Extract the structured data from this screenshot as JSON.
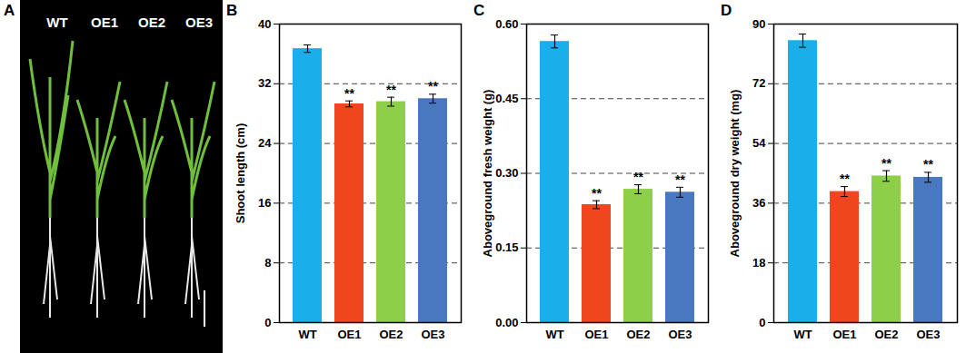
{
  "photo": {
    "panel": "A",
    "labels": [
      "WT",
      "OE1",
      "OE2",
      "OE3"
    ]
  },
  "chart_data": [
    {
      "type": "bar",
      "title": "B",
      "y_label": "Shoot length (cm)",
      "categories": [
        "WT",
        "OE1",
        "OE2",
        "OE3"
      ],
      "values": [
        36.7,
        29.3,
        29.6,
        30.0
      ],
      "errors": [
        0.5,
        0.4,
        0.6,
        0.6
      ],
      "annotations": [
        null,
        "**",
        "**",
        "**"
      ],
      "colors": [
        "#1aaeea",
        "#f0461e",
        "#8ecf4a",
        "#4a78c0"
      ],
      "ylim": [
        0,
        40
      ],
      "yticks": [
        0,
        8,
        16,
        24,
        32,
        40
      ],
      "grid": true
    },
    {
      "type": "bar",
      "title": "C",
      "y_label": "Aboveground fresh weight (g)",
      "categories": [
        "WT",
        "OE1",
        "OE2",
        "OE3"
      ],
      "values": [
        0.565,
        0.237,
        0.268,
        0.262
      ],
      "errors": [
        0.013,
        0.008,
        0.009,
        0.01
      ],
      "annotations": [
        null,
        "**",
        "**",
        "**"
      ],
      "colors": [
        "#1aaeea",
        "#f0461e",
        "#8ecf4a",
        "#4a78c0"
      ],
      "ylim": [
        0,
        0.6
      ],
      "yticks": [
        {
          "value": 0,
          "label": "0.00"
        },
        {
          "value": 0.15,
          "label": "0.15"
        },
        {
          "value": 0.3,
          "label": "0.30"
        },
        {
          "value": 0.45,
          "label": "0.45"
        },
        {
          "value": 0.6,
          "label": "0.60"
        }
      ],
      "grid": true
    },
    {
      "type": "bar",
      "title": "D",
      "y_label": "Aboveground dry weight (mg)",
      "categories": [
        "WT",
        "OE1",
        "OE2",
        "OE3"
      ],
      "values": [
        85.0,
        39.5,
        44.2,
        43.8
      ],
      "errors": [
        2.0,
        1.5,
        1.6,
        1.5
      ],
      "annotations": [
        null,
        "**",
        "**",
        "**"
      ],
      "colors": [
        "#1aaeea",
        "#f0461e",
        "#8ecf4a",
        "#4a78c0"
      ],
      "ylim": [
        0,
        90
      ],
      "yticks": [
        0,
        18,
        36,
        54,
        72,
        90
      ],
      "grid": true
    }
  ]
}
